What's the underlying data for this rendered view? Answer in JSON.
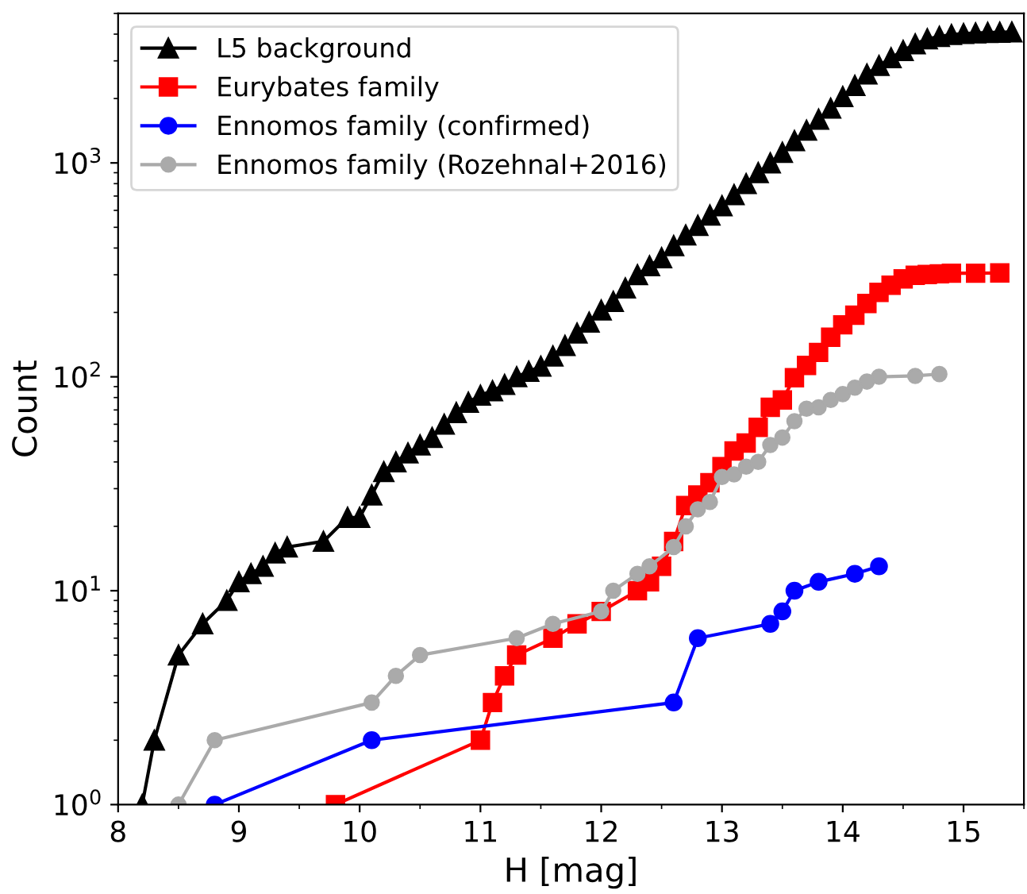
{
  "chart_data": {
    "type": "line",
    "xlabel": "H [mag]",
    "ylabel": "Count",
    "log": "y",
    "xlim": [
      8,
      15.5
    ],
    "xticks": [
      8,
      9,
      10,
      11,
      12,
      13,
      14,
      15
    ],
    "ylim": [
      1,
      5000
    ],
    "yticks": [
      {
        "value": 1,
        "label": "10$^{0}$"
      },
      {
        "value": 10,
        "label": "10$^{1}$"
      },
      {
        "value": 100,
        "label": "10$^{2}$"
      },
      {
        "value": 1000,
        "label": "10$^{3}$"
      }
    ],
    "grid": false,
    "legend": "top left",
    "line_style": "solid",
    "series": [
      {
        "name": "L5 background",
        "color": "#000000",
        "marker": "triangle",
        "x": [
          8.2,
          8.3,
          8.5,
          8.7,
          8.9,
          9.0,
          9.1,
          9.2,
          9.3,
          9.4,
          9.7,
          9.9,
          10.0,
          10.1,
          10.2,
          10.3,
          10.4,
          10.5,
          10.6,
          10.7,
          10.8,
          10.9,
          11.0,
          11.1,
          11.2,
          11.3,
          11.4,
          11.5,
          11.6,
          11.7,
          11.8,
          11.9,
          12.0,
          12.1,
          12.2,
          12.3,
          12.4,
          12.5,
          12.6,
          12.7,
          12.8,
          12.9,
          13.0,
          13.1,
          13.2,
          13.3,
          13.4,
          13.5,
          13.6,
          13.7,
          13.8,
          13.9,
          14.0,
          14.1,
          14.2,
          14.3,
          14.4,
          14.5,
          14.6,
          14.7,
          14.8,
          14.9,
          15.0,
          15.1,
          15.2,
          15.3,
          15.4
        ],
        "values": [
          1,
          2,
          5,
          7,
          9,
          11,
          12,
          13,
          15,
          16,
          17,
          22,
          22,
          28,
          36,
          40,
          44,
          48,
          52,
          60,
          68,
          76,
          82,
          86,
          92,
          100,
          106,
          112,
          125,
          140,
          160,
          180,
          205,
          225,
          260,
          300,
          330,
          360,
          410,
          460,
          510,
          570,
          630,
          710,
          800,
          900,
          1000,
          1120,
          1270,
          1420,
          1600,
          1800,
          2040,
          2300,
          2600,
          2850,
          3100,
          3350,
          3600,
          3800,
          3900,
          3980,
          4020,
          4050,
          4070,
          4080,
          4090
        ]
      },
      {
        "name": "Eurybates family",
        "color": "#ff0000",
        "marker": "square",
        "x": [
          9.8,
          11.0,
          11.1,
          11.2,
          11.3,
          11.6,
          11.8,
          12.0,
          12.3,
          12.4,
          12.5,
          12.6,
          12.7,
          12.8,
          12.9,
          13.0,
          13.1,
          13.2,
          13.3,
          13.4,
          13.5,
          13.6,
          13.7,
          13.8,
          13.9,
          14.0,
          14.1,
          14.2,
          14.3,
          14.4,
          14.5,
          14.6,
          14.7,
          14.8,
          14.9,
          15.1,
          15.3
        ],
        "values": [
          1,
          2,
          3,
          4,
          5,
          6,
          7,
          8,
          10,
          11,
          13,
          17,
          25,
          28,
          32,
          38,
          45,
          49,
          58,
          72,
          78,
          99,
          113,
          130,
          153,
          175,
          194,
          220,
          248,
          268,
          287,
          298,
          301,
          303,
          305,
          305,
          306
        ]
      },
      {
        "name": "Ennomos family (confirmed)",
        "color": "#0000ff",
        "marker": "circle",
        "x": [
          8.8,
          10.1,
          12.6,
          12.8,
          13.4,
          13.5,
          13.6,
          13.8,
          14.1,
          14.3
        ],
        "values": [
          1,
          2,
          3,
          6,
          7,
          8,
          10,
          11,
          12,
          13
        ]
      },
      {
        "name": "Ennomos family (Rozehnal+2016)",
        "color": "#aaaaaa",
        "marker": "circle",
        "x": [
          8.5,
          8.8,
          10.1,
          10.3,
          10.5,
          11.3,
          11.6,
          12.0,
          12.1,
          12.3,
          12.4,
          12.6,
          12.7,
          12.8,
          12.9,
          13.0,
          13.1,
          13.2,
          13.3,
          13.4,
          13.5,
          13.6,
          13.7,
          13.8,
          13.9,
          14.0,
          14.1,
          14.2,
          14.3,
          14.6,
          14.8
        ],
        "values": [
          1,
          2,
          3,
          4,
          5,
          6,
          7,
          8,
          10,
          12,
          13,
          16,
          20,
          24,
          26,
          34,
          35,
          38,
          40,
          48,
          52,
          62,
          71,
          72,
          78,
          83,
          89,
          95,
          100,
          101,
          103
        ]
      }
    ]
  }
}
